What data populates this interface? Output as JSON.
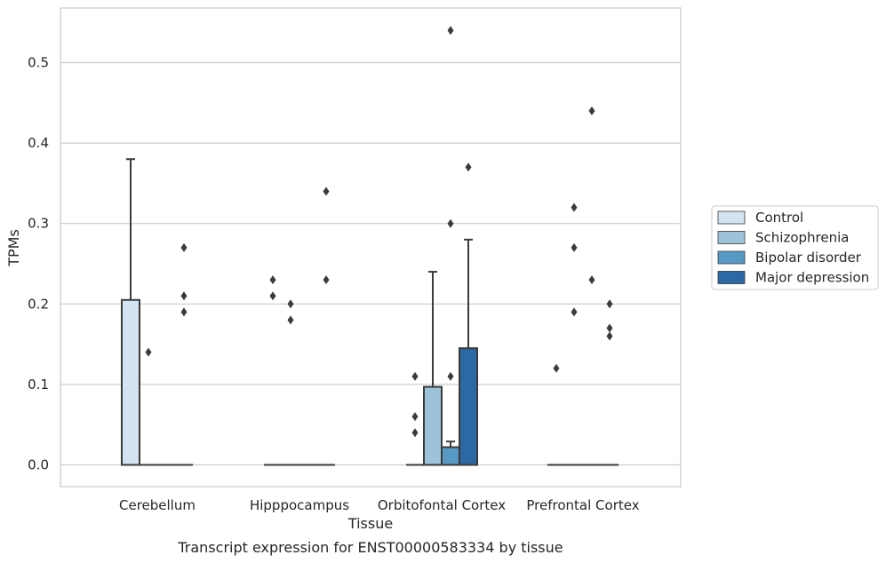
{
  "chart_data": {
    "type": "box",
    "caption": "Transcript expression for ENST00000583334 by tissue",
    "xlabel": "Tissue",
    "ylabel": "TPMs",
    "ylim": [
      -0.026,
      0.57
    ],
    "yticks": [
      0.0,
      0.1,
      0.2,
      0.3,
      0.4,
      0.5
    ],
    "ytick_labels": [
      "0.0",
      "0.1",
      "0.2",
      "0.3",
      "0.4",
      "0.5"
    ],
    "grid": true,
    "legend_position": "right",
    "categories": [
      "Cerebellum",
      "Hipppocampus",
      "Orbitofontal Cortex",
      "Prefrontal Cortex"
    ],
    "series": [
      {
        "name": "Control",
        "color": "#d4e3f1",
        "boxes": [
          {
            "q1": 0.0,
            "median": 0.0,
            "q3": 0.205,
            "whisker_low": 0.0,
            "whisker_high": 0.38,
            "outliers": []
          },
          {
            "q1": 0.0,
            "median": 0.0,
            "q3": 0.0,
            "whisker_low": 0.0,
            "whisker_high": 0.0,
            "outliers": [
              0.23,
              0.21
            ]
          },
          {
            "q1": 0.0,
            "median": 0.0,
            "q3": 0.0,
            "whisker_low": 0.0,
            "whisker_high": 0.0,
            "outliers": [
              0.11,
              0.06,
              0.04
            ]
          },
          {
            "q1": 0.0,
            "median": 0.0,
            "q3": 0.0,
            "whisker_low": 0.0,
            "whisker_high": 0.0,
            "outliers": [
              0.12
            ]
          }
        ]
      },
      {
        "name": "Schizophrenia",
        "color": "#9cc3da",
        "boxes": [
          {
            "q1": 0.0,
            "median": 0.0,
            "q3": 0.0,
            "whisker_low": 0.0,
            "whisker_high": 0.0,
            "outliers": [
              0.14
            ]
          },
          {
            "q1": 0.0,
            "median": 0.0,
            "q3": 0.0,
            "whisker_low": 0.0,
            "whisker_high": 0.0,
            "outliers": [
              0.2,
              0.18
            ]
          },
          {
            "q1": 0.0,
            "median": 0.0,
            "q3": 0.097,
            "whisker_low": 0.0,
            "whisker_high": 0.24,
            "outliers": []
          },
          {
            "q1": 0.0,
            "median": 0.0,
            "q3": 0.0,
            "whisker_low": 0.0,
            "whisker_high": 0.0,
            "outliers": [
              0.32,
              0.27,
              0.19
            ]
          }
        ]
      },
      {
        "name": "Bipolar disorder",
        "color": "#5898c4",
        "boxes": [
          {
            "q1": 0.0,
            "median": 0.0,
            "q3": 0.0,
            "whisker_low": 0.0,
            "whisker_high": 0.0,
            "outliers": []
          },
          {
            "q1": 0.0,
            "median": 0.0,
            "q3": 0.0,
            "whisker_low": 0.0,
            "whisker_high": 0.0,
            "outliers": []
          },
          {
            "q1": 0.0,
            "median": 0.0,
            "q3": 0.022,
            "whisker_low": 0.0,
            "whisker_high": 0.029,
            "outliers": [
              0.54,
              0.3,
              0.11
            ]
          },
          {
            "q1": 0.0,
            "median": 0.0,
            "q3": 0.0,
            "whisker_low": 0.0,
            "whisker_high": 0.0,
            "outliers": [
              0.44,
              0.23
            ]
          }
        ]
      },
      {
        "name": "Major depression",
        "color": "#2b68a4",
        "boxes": [
          {
            "q1": 0.0,
            "median": 0.0,
            "q3": 0.0,
            "whisker_low": 0.0,
            "whisker_high": 0.0,
            "outliers": [
              0.27,
              0.21,
              0.19
            ]
          },
          {
            "q1": 0.0,
            "median": 0.0,
            "q3": 0.0,
            "whisker_low": 0.0,
            "whisker_high": 0.0,
            "outliers": [
              0.34,
              0.23
            ]
          },
          {
            "q1": 0.0,
            "median": 0.0,
            "q3": 0.145,
            "whisker_low": 0.0,
            "whisker_high": 0.28,
            "outliers": [
              0.37
            ]
          },
          {
            "q1": 0.0,
            "median": 0.0,
            "q3": 0.0,
            "whisker_low": 0.0,
            "whisker_high": 0.0,
            "outliers": [
              0.2,
              0.17,
              0.16
            ]
          }
        ]
      }
    ]
  }
}
